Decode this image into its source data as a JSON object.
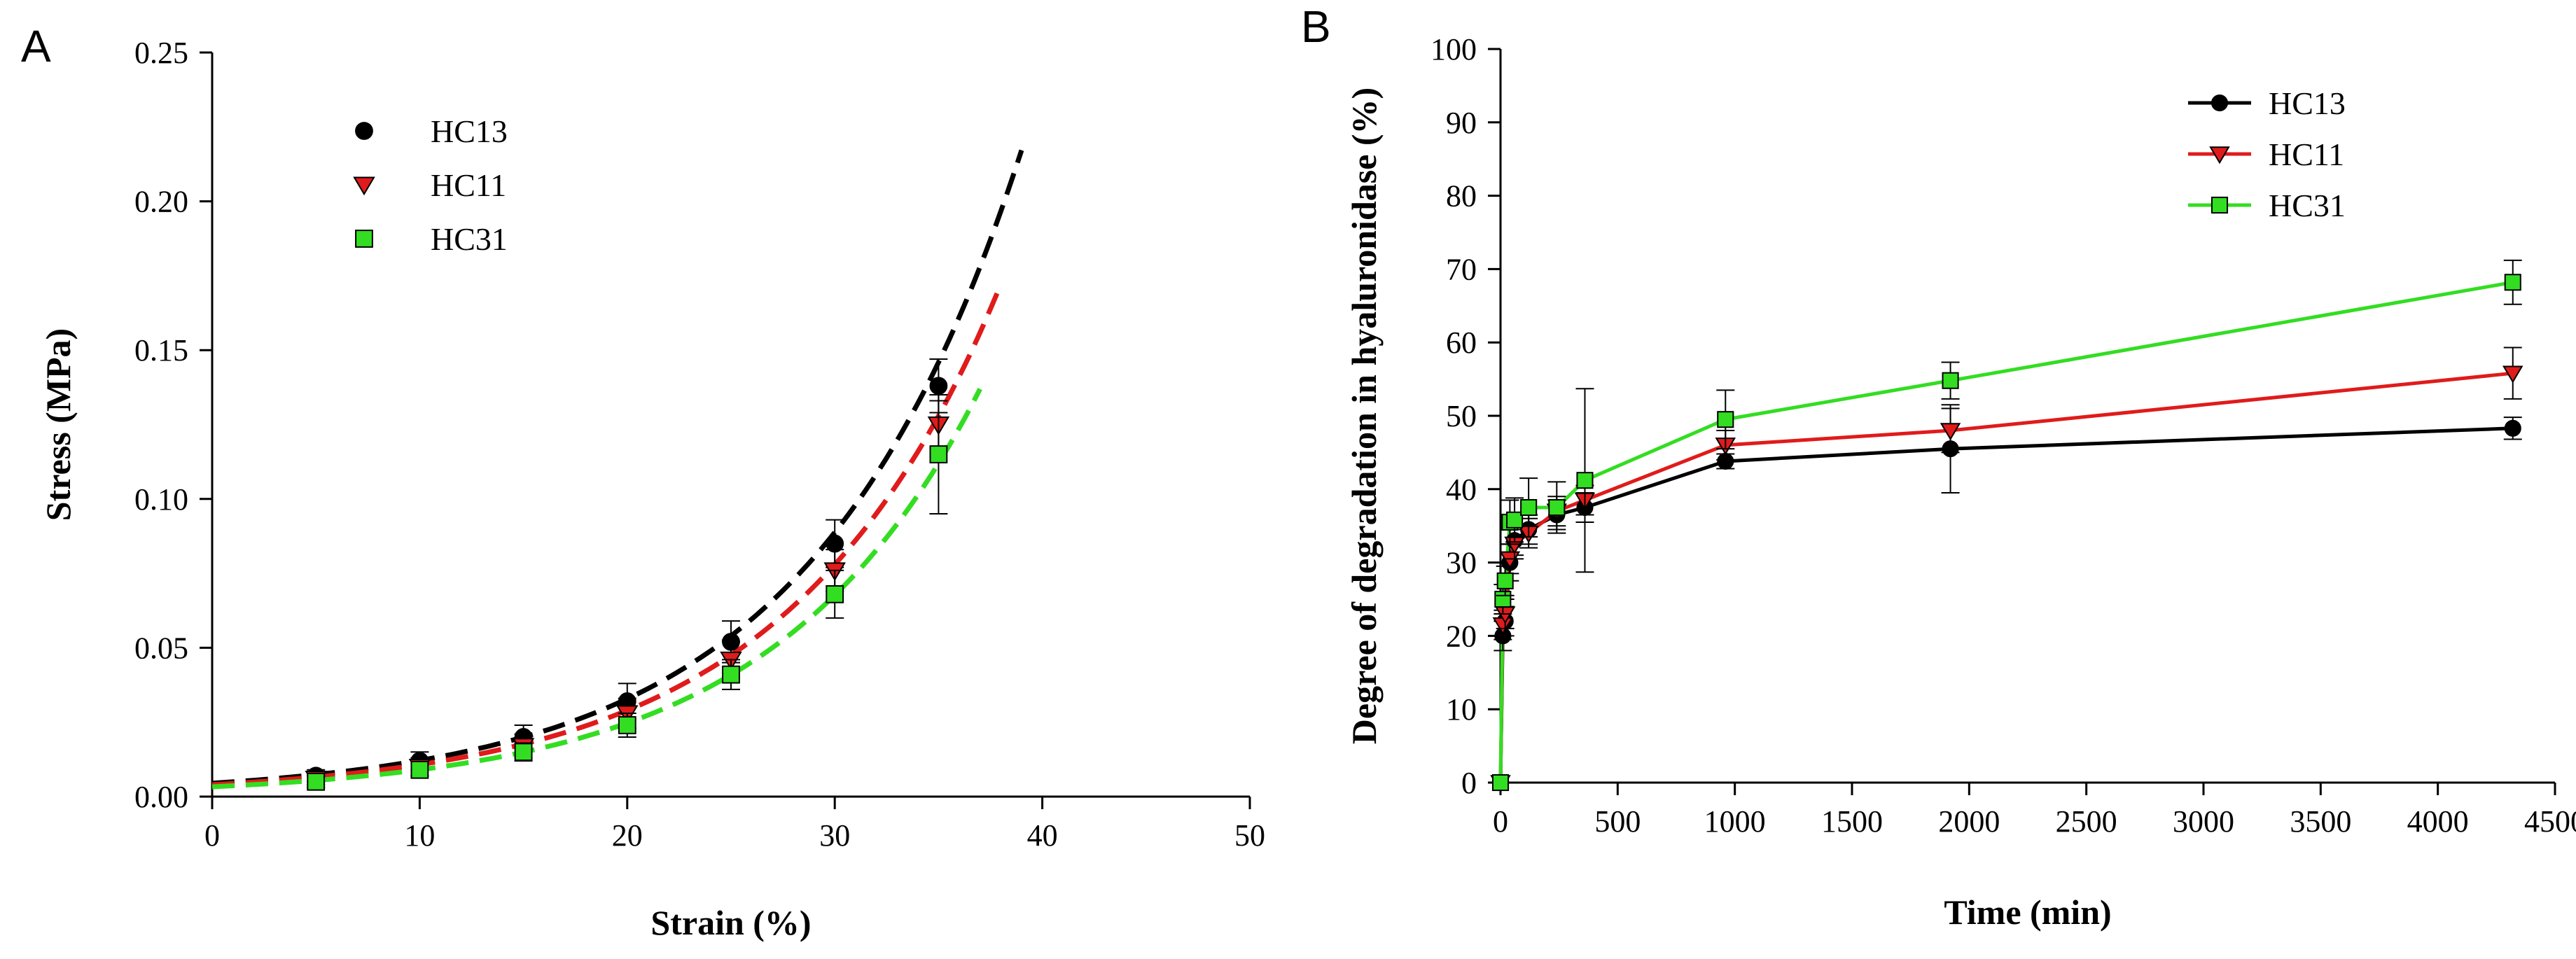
{
  "chart_data": [
    {
      "panel": "A",
      "type": "scatter",
      "xlabel": "Strain (%)",
      "ylabel": "Stress (MPa)",
      "xlim": [
        0,
        50
      ],
      "ylim": [
        0,
        0.25
      ],
      "xticks": [
        "0",
        "10",
        "20",
        "30",
        "40",
        "50"
      ],
      "yticks": [
        "0.00",
        "0.05",
        "0.10",
        "0.15",
        "0.20",
        "0.25"
      ],
      "legend_position": "top-left",
      "series": [
        {
          "name": "HC13",
          "color": "#000000",
          "marker": "circle",
          "x": [
            5,
            10,
            15,
            20,
            25,
            30,
            35
          ],
          "y": [
            0.007,
            0.012,
            0.02,
            0.032,
            0.052,
            0.085,
            0.138
          ],
          "err": [
            0.002,
            0.003,
            0.004,
            0.006,
            0.007,
            0.008,
            0.009
          ],
          "fit_a": 0.0045,
          "fit_b": 0.0994,
          "fit_xmax": 39
        },
        {
          "name": "HC11",
          "color": "#e01b1b",
          "marker": "triangle-down",
          "x": [
            5,
            10,
            15,
            20,
            25,
            30,
            35
          ],
          "y": [
            0.006,
            0.01,
            0.017,
            0.028,
            0.046,
            0.076,
            0.125
          ],
          "err": [
            0.002,
            0.003,
            0.004,
            0.005,
            0.006,
            0.007,
            0.008
          ],
          "fit_a": 0.004,
          "fit_b": 0.099,
          "fit_xmax": 38.2
        },
        {
          "name": "HC31",
          "color": "#33dd22",
          "marker": "square",
          "x": [
            5,
            10,
            15,
            20,
            25,
            30,
            35
          ],
          "y": [
            0.005,
            0.009,
            0.015,
            0.024,
            0.041,
            0.068,
            0.115
          ],
          "err": [
            0.002,
            0.002,
            0.003,
            0.004,
            0.005,
            0.008,
            0.02
          ],
          "fit_a": 0.0033,
          "fit_b": 0.1007,
          "fit_xmax": 37
        }
      ]
    },
    {
      "panel": "B",
      "type": "line",
      "xlabel": "Time (min)",
      "ylabel": "Degree of degradation in hyaluronidase (%)",
      "xlim": [
        0,
        4500
      ],
      "ylim": [
        0,
        100
      ],
      "xticks": [
        "0",
        "500",
        "1000",
        "1500",
        "2000",
        "2500",
        "3000",
        "3500",
        "4000",
        "4500"
      ],
      "yticks": [
        "0",
        "10",
        "20",
        "30",
        "40",
        "50",
        "60",
        "70",
        "80",
        "90",
        "100"
      ],
      "legend_position": "top-right",
      "series": [
        {
          "name": "HC13",
          "color": "#000000",
          "marker": "circle",
          "x": [
            0,
            10,
            20,
            40,
            60,
            120,
            240,
            360,
            960,
            1920,
            4320
          ],
          "y": [
            0,
            20,
            22,
            30,
            33,
            34.5,
            36.5,
            37.5,
            43.8,
            45.5,
            48.3
          ],
          "err": [
            0,
            2,
            2,
            2.5,
            2,
            2,
            2,
            2,
            1,
            6,
            1.5
          ]
        },
        {
          "name": "HC11",
          "color": "#e01b1b",
          "marker": "triangle-down",
          "x": [
            0,
            10,
            20,
            40,
            60,
            120,
            240,
            360,
            960,
            1920,
            4320
          ],
          "y": [
            0,
            21.5,
            23,
            30.5,
            32.5,
            34,
            37,
            38.5,
            46,
            48,
            55.8
          ],
          "err": [
            0,
            2,
            2,
            2,
            2,
            2,
            2,
            2,
            2,
            3,
            3.5
          ]
        },
        {
          "name": "HC31",
          "color": "#33dd22",
          "marker": "square",
          "x": [
            0,
            10,
            20,
            40,
            60,
            120,
            240,
            360,
            960,
            1920,
            4320
          ],
          "y": [
            0,
            25,
            27.5,
            35.5,
            35.8,
            37.5,
            37.5,
            41.2,
            49.5,
            54.8,
            68.2
          ],
          "err": [
            0,
            2,
            2,
            3,
            3,
            4,
            3.5,
            12.5,
            4,
            2.5,
            3
          ]
        }
      ]
    }
  ]
}
